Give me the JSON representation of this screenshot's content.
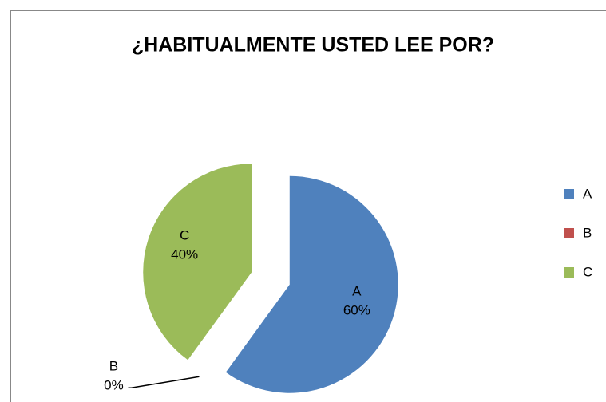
{
  "chart_data": {
    "type": "pie",
    "title": "¿HABITUALMENTE USTED LEE POR?",
    "categories": [
      "A",
      "B",
      "C"
    ],
    "values": [
      60,
      0,
      40
    ],
    "value_labels": [
      "60%",
      "0%",
      "40%"
    ],
    "colors": [
      "#4f81bd",
      "#c0504d",
      "#9bbb59"
    ],
    "legend": "right"
  }
}
